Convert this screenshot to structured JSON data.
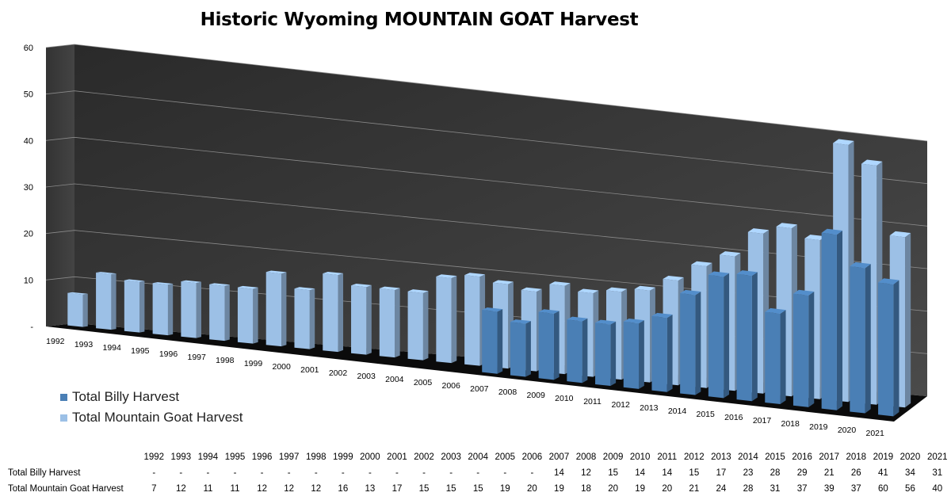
{
  "chart_data": {
    "type": "bar",
    "title": "Historic Wyoming MOUNTAIN GOAT Harvest",
    "categories": [
      "1992",
      "1993",
      "1994",
      "1995",
      "1996",
      "1997",
      "1998",
      "1999",
      "2000",
      "2001",
      "2002",
      "2003",
      "2004",
      "2005",
      "2006",
      "2007",
      "2008",
      "2009",
      "2010",
      "2011",
      "2012",
      "2013",
      "2014",
      "2015",
      "2016",
      "2017",
      "2018",
      "2019",
      "2020",
      "2021"
    ],
    "series": [
      {
        "name": "Total Billy Harvest",
        "color": "#4a7fb5",
        "values": [
          null,
          null,
          null,
          null,
          null,
          null,
          null,
          null,
          null,
          null,
          null,
          null,
          null,
          null,
          null,
          14,
          12,
          15,
          14,
          14,
          15,
          17,
          23,
          28,
          29,
          21,
          26,
          41,
          34,
          31
        ],
        "display": [
          "-",
          "-",
          "-",
          "-",
          "-",
          "-",
          "-",
          "-",
          "-",
          "-",
          "-",
          "-",
          "-",
          "-",
          "-",
          "14",
          "12",
          "15",
          "14",
          "14",
          "15",
          "17",
          "23",
          "28",
          "29",
          "21",
          "26",
          "41",
          "34",
          "31"
        ]
      },
      {
        "name": "Total Mountain Goat Harvest",
        "color": "#9cc0e6",
        "values": [
          7,
          12,
          11,
          11,
          12,
          12,
          12,
          16,
          13,
          17,
          15,
          15,
          15,
          19,
          20,
          19,
          18,
          20,
          19,
          20,
          21,
          24,
          28,
          31,
          37,
          39,
          37,
          60,
          56,
          40
        ],
        "display": [
          "7",
          "12",
          "11",
          "11",
          "12",
          "12",
          "12",
          "16",
          "13",
          "17",
          "15",
          "15",
          "15",
          "19",
          "20",
          "19",
          "18",
          "20",
          "19",
          "20",
          "21",
          "24",
          "28",
          "31",
          "37",
          "39",
          "37",
          "60",
          "56",
          "40"
        ]
      }
    ],
    "y_ticks": [
      "-",
      "10",
      "20",
      "30",
      "40",
      "50",
      "60"
    ],
    "ylim": [
      0,
      60
    ],
    "grid": true,
    "legend_position": "bottom-left",
    "data_table": true
  }
}
